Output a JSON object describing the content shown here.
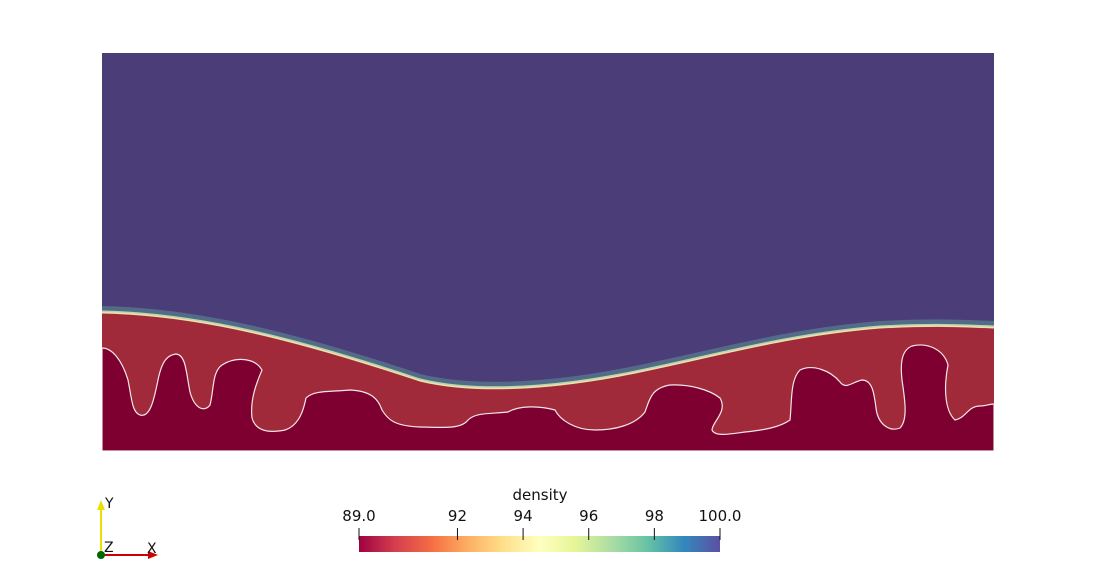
{
  "colorbar": {
    "title": "density",
    "range": [
      89.0,
      100.0
    ],
    "ticks": [
      {
        "value": 89.0,
        "label": "89.0"
      },
      {
        "value": 92,
        "label": "92"
      },
      {
        "value": 94,
        "label": "94"
      },
      {
        "value": 96,
        "label": "96"
      },
      {
        "value": 98,
        "label": "98"
      },
      {
        "value": 100.0,
        "label": "100.0"
      }
    ],
    "colormap": [
      "#9e0142",
      "#d53e4f",
      "#f46d43",
      "#fdae61",
      "#fee08b",
      "#ffffbf",
      "#e6f598",
      "#abdda4",
      "#66c2a5",
      "#3288bd",
      "#5e4fa2"
    ]
  },
  "field": {
    "upper_color": "#4a3d78",
    "middle_color": "#a12a3a",
    "lower_color": "#7e0030"
  },
  "orientation_axes": {
    "y_label": "Y",
    "z_label": "Z",
    "x_label": "X",
    "y_color": "#e8e000",
    "x_color": "#cc0000",
    "z_color": "#006600"
  }
}
